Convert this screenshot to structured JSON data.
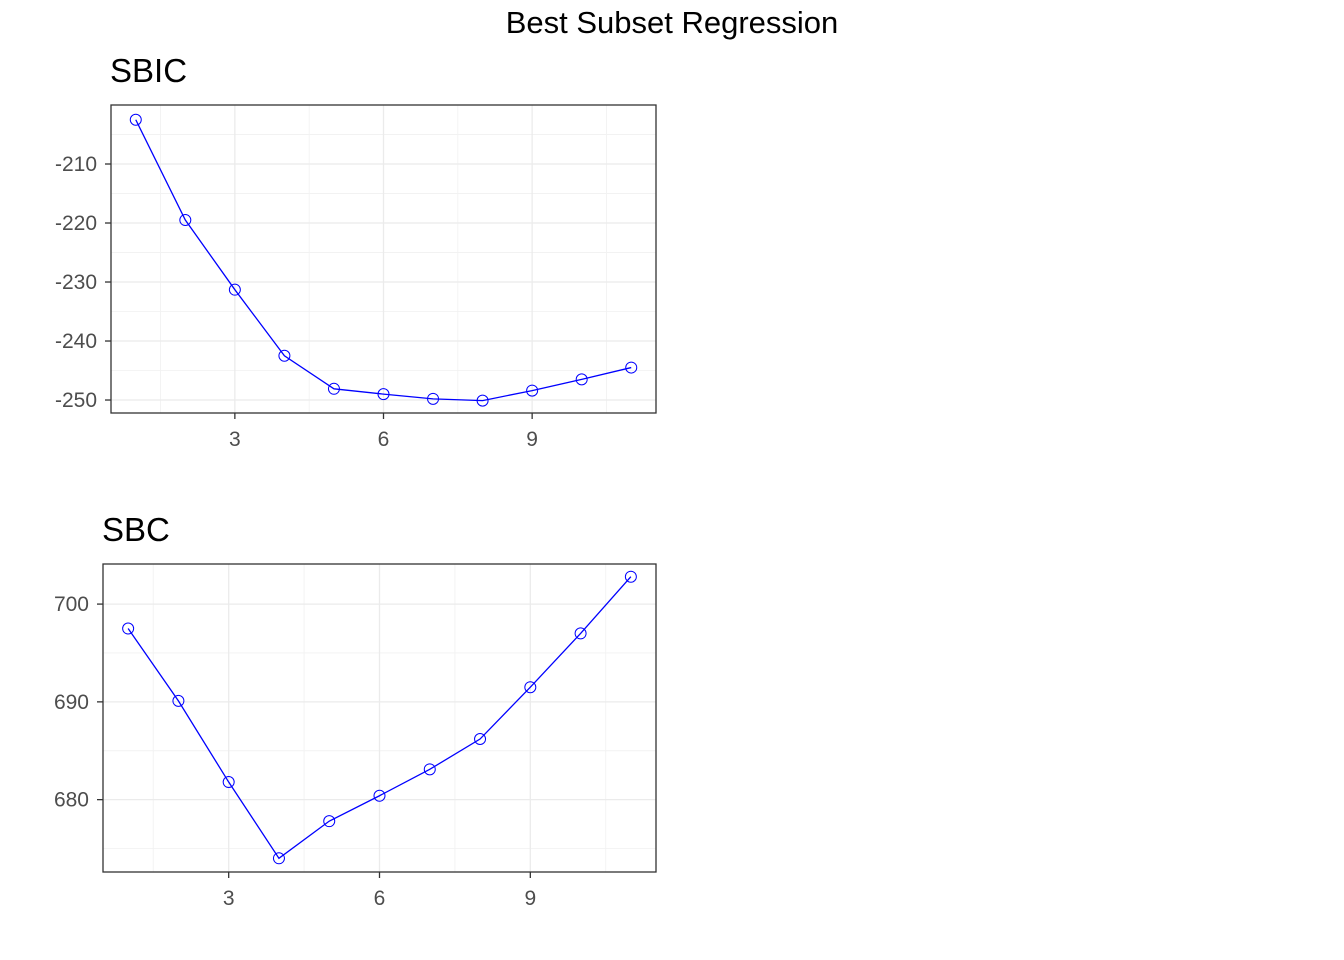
{
  "figure": {
    "title": "Best Subset Regression"
  },
  "colors": {
    "line": "#0000ff",
    "point": "#0000ff"
  },
  "chart_data": [
    {
      "type": "line",
      "title": "SBIC",
      "xlabel": "",
      "ylabel": "",
      "x": [
        1,
        2,
        3,
        4,
        5,
        6,
        7,
        8,
        9,
        10,
        11
      ],
      "series": [
        {
          "values": [
            -202.5,
            -219.5,
            -231.3,
            -242.5,
            -248.1,
            -249.0,
            -249.8,
            -250.1,
            -248.4,
            -246.5,
            -244.5
          ]
        }
      ],
      "xlim": [
        0.5,
        11.5
      ],
      "ylim": [
        -252.2,
        -200.0
      ],
      "xticks": [
        3,
        6,
        9
      ],
      "yticks": [
        -210,
        -220,
        -230,
        -240,
        -250
      ],
      "grid": true,
      "legend": "none"
    },
    {
      "type": "line",
      "title": "SBC",
      "xlabel": "",
      "ylabel": "",
      "x": [
        1,
        2,
        3,
        4,
        5,
        6,
        7,
        8,
        9,
        10,
        11
      ],
      "series": [
        {
          "values": [
            697.5,
            690.1,
            681.8,
            674.0,
            677.8,
            680.4,
            683.1,
            686.2,
            691.5,
            697.0,
            702.8
          ]
        }
      ],
      "xlim": [
        0.5,
        11.5
      ],
      "ylim": [
        672.6,
        704.1
      ],
      "xticks": [
        3,
        6,
        9
      ],
      "yticks": [
        700,
        690,
        680
      ],
      "grid": true,
      "legend": "none"
    }
  ]
}
